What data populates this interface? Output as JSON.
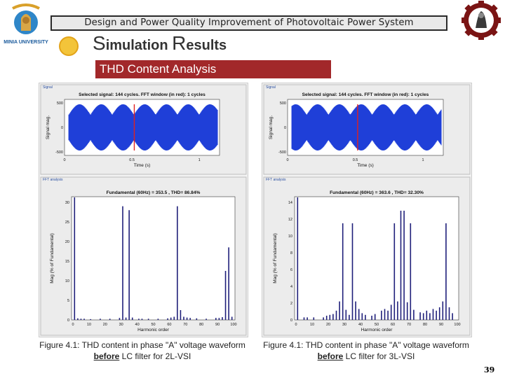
{
  "header": {
    "banner": "Design and Power Quality Improvement of Photovoltaic Power System",
    "university": "MINIA UNIVERSITY",
    "section_cap1": "S",
    "section_rest1": "imulation ",
    "section_cap2": "R",
    "section_rest2": "esults",
    "subheader": "THD Content Analysis"
  },
  "figures": [
    {
      "signal_panel_tag": "Signal",
      "signal_title": "Selected signal: 144 cycles. FFT window (in red): 1 cycles",
      "signal_ylabel": "Signal mag.",
      "signal_xlabel": "Time (s)",
      "signal_yticks": [
        "500",
        "0",
        "-500"
      ],
      "signal_xticks": [
        "0",
        "0.5",
        "1",
        "1.5",
        "2"
      ],
      "fft_panel_tag": "FFT analysis",
      "fft_title": "Fundamental (60Hz) = 353.5 , THD= 86.84%",
      "fft_ylabel": "Mag (% of Fundamental)",
      "fft_xlabel": "Harmonic order",
      "fft_yticks": [
        "30",
        "25",
        "20",
        "15",
        "10",
        "5",
        "0"
      ],
      "fft_xticks": [
        "0",
        "10",
        "20",
        "30",
        "40",
        "50",
        "60",
        "70",
        "80",
        "90",
        "100"
      ],
      "caption_before": "Figure 4.1: THD content in phase \"A\" voltage waveform ",
      "caption_emph": "before",
      "caption_after": " LC filter for 2L-VSI"
    },
    {
      "signal_panel_tag": "Signal",
      "signal_title": "Selected signal: 144 cycles. FFT window (in red): 1 cycles",
      "signal_ylabel": "Signal mag.",
      "signal_xlabel": "Time (s)",
      "signal_yticks": [
        "500",
        "0",
        "-500"
      ],
      "signal_xticks": [
        "0",
        "0.5",
        "1",
        "1.5",
        "2"
      ],
      "fft_panel_tag": "FFT analysis",
      "fft_title": "Fundamental (60Hz) = 363.6 , THD= 32.30%",
      "fft_ylabel": "Mag (% of Fundamental)",
      "fft_xlabel": "Harmonic order",
      "fft_yticks": [
        "14",
        "12",
        "10",
        "8",
        "6",
        "4",
        "2",
        "0"
      ],
      "fft_xticks": [
        "0",
        "10",
        "20",
        "30",
        "40",
        "50",
        "60",
        "70",
        "80",
        "90",
        "100"
      ],
      "caption_before": "Figure 4.1: THD content in phase \"A\" voltage waveform ",
      "caption_emph": "before",
      "caption_after": " LC filter for 3L-VSI"
    }
  ],
  "page_number": "39",
  "colors": {
    "subheader_bg": "#a2282a",
    "bar": "#1f1f7a",
    "signal": "#1f3fd8",
    "window": "#e02020"
  }
}
